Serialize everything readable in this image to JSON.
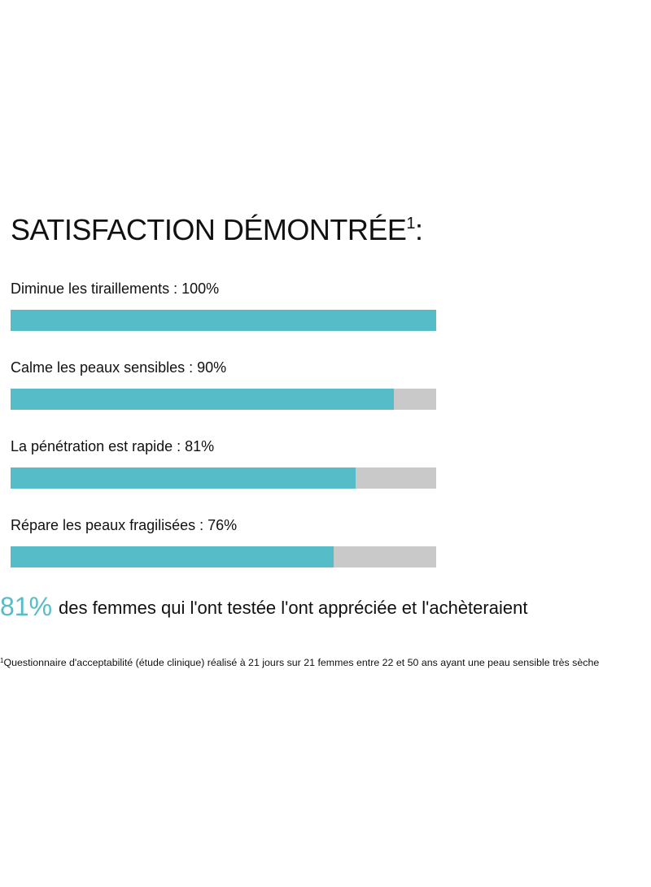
{
  "title": {
    "text": "SATISFACTION DÉMONTRÉE",
    "sup": "1",
    "suffix": ":"
  },
  "colors": {
    "accent": "#55bcc8",
    "track": "#c9c9c9",
    "text": "#111111"
  },
  "chart_data": {
    "type": "bar",
    "orientation": "horizontal",
    "categories": [
      "Diminue les tiraillements",
      "Calme les peaux sensibles",
      "La pénétration est rapide",
      "Répare les peaux fragilisées"
    ],
    "labels": [
      "Diminue les tiraillements : 100%",
      "Calme les peaux sensibles : 90%",
      "La pénétration est rapide : 81%",
      "Répare les peaux fragilisées : 76%"
    ],
    "values": [
      100,
      90,
      81,
      76
    ],
    "xlim": [
      0,
      100
    ],
    "unit": "%",
    "grid": false
  },
  "highlight": {
    "value": "81%",
    "text": "des femmes qui l'ont testée l'ont appréciée et l'achèteraient"
  },
  "footnote": {
    "sup": "1",
    "text": "Questionnaire d'acceptabilité (étude clinique) réalisé à 21 jours sur 21 femmes entre 22 et 50 ans ayant une peau sensible très sèche"
  }
}
